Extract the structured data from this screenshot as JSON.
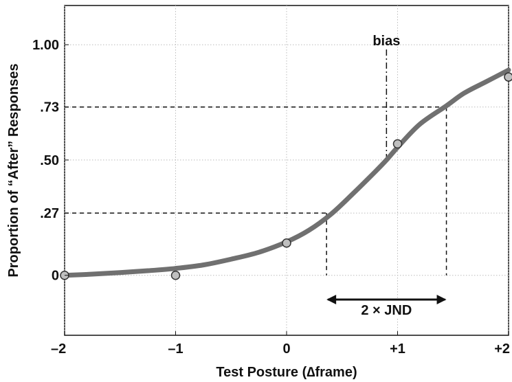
{
  "chart_data": {
    "type": "line",
    "title": "",
    "xlabel": "Test Posture (∆frame)",
    "ylabel": "Proportion of “After” Responses",
    "xlim": [
      -2,
      2
    ],
    "ylim": [
      -0.26,
      1.17
    ],
    "x_ticks": [
      {
        "value": -2,
        "label": "–2"
      },
      {
        "value": -1,
        "label": "–1"
      },
      {
        "value": 0,
        "label": "0"
      },
      {
        "value": 1,
        "label": "+1"
      },
      {
        "value": 2,
        "label": "+2"
      }
    ],
    "y_ticks": [
      {
        "value": 0,
        "label": "0"
      },
      {
        "value": 0.27,
        "label": ".27"
      },
      {
        "value": 0.5,
        "label": ".50"
      },
      {
        "value": 0.73,
        "label": ".73"
      },
      {
        "value": 1.0,
        "label": "1.00"
      }
    ],
    "grid": true,
    "series": [
      {
        "type": "line",
        "color": "#707070",
        "x": [
          -2.0,
          -1.75,
          -1.5,
          -1.25,
          -1.0,
          -0.75,
          -0.5,
          -0.25,
          0.0,
          0.2,
          0.4,
          0.6,
          0.8,
          0.9,
          1.0,
          1.2,
          1.44,
          1.6,
          1.8,
          2.0
        ],
        "y": [
          0.0,
          0.005,
          0.012,
          0.02,
          0.03,
          0.045,
          0.07,
          0.1,
          0.145,
          0.195,
          0.265,
          0.355,
          0.45,
          0.5,
          0.555,
          0.655,
          0.735,
          0.79,
          0.84,
          0.89
        ]
      },
      {
        "type": "scatter",
        "color": "#bfbfbf",
        "x": [
          -2,
          -1,
          0,
          1,
          2
        ],
        "y": [
          0.0,
          0.0,
          0.14,
          0.57,
          0.86
        ]
      }
    ],
    "annotations": {
      "bias_label": "bias",
      "bias_x": 0.9,
      "jnd_label": "2 × JND",
      "jnd_range": [
        0.36,
        1.44
      ]
    }
  }
}
